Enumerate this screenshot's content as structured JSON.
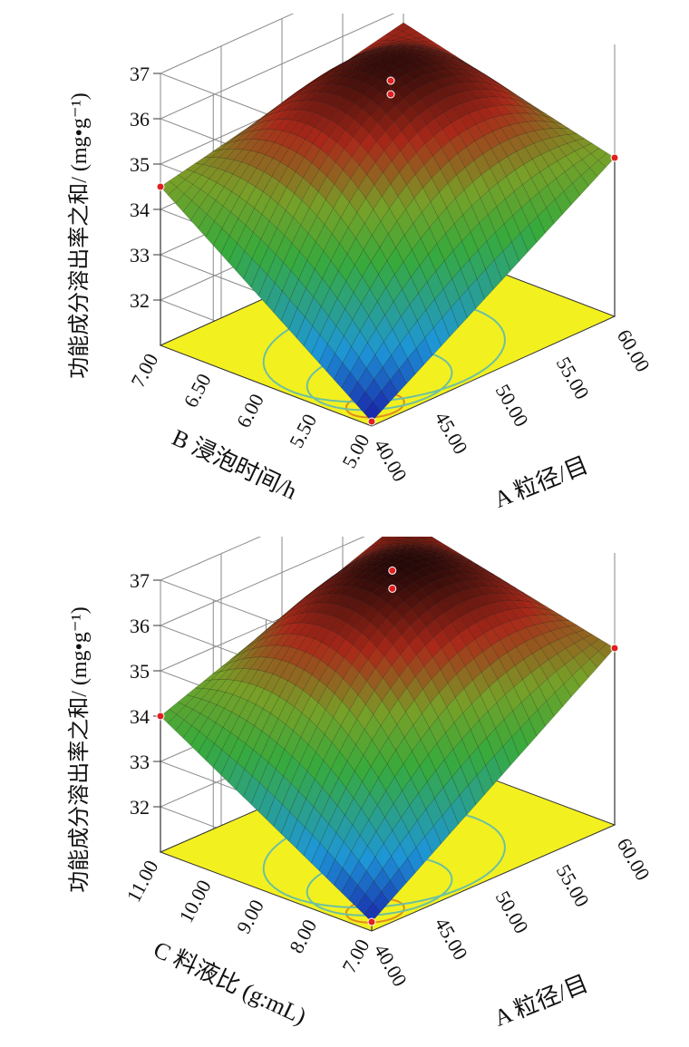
{
  "chart_data": [
    {
      "type": "surface3d",
      "z_label": "功能成分溶出率之和/ (mg•g⁻¹)",
      "z_ticks": [
        32,
        33,
        34,
        35,
        36,
        37
      ],
      "z_range": [
        31,
        37
      ],
      "x_label": "A 粒径/目",
      "x_ticks": [
        "40.00",
        "45.00",
        "50.00",
        "55.00",
        "60.00"
      ],
      "x_range": [
        40,
        60
      ],
      "y_label": "B 浸泡时间/h",
      "y_ticks": [
        "5.00",
        "5.50",
        "6.00",
        "6.50",
        "7.00"
      ],
      "y_range": [
        5,
        7
      ],
      "surface_corners": {
        "x_min_y_min": 31.1,
        "x_max_y_min": 34.5,
        "x_min_y_max": 34.5,
        "x_max_y_max": 35.7
      },
      "surface_peak": {
        "x": 52,
        "y": 6.2,
        "z": 36.4
      },
      "design_points_z": [
        35.8,
        35.9,
        34.5,
        34.5,
        31.1
      ]
    },
    {
      "type": "surface3d",
      "z_label": "功能成分溶出率之和/ (mg•g⁻¹)",
      "z_ticks": [
        32,
        33,
        34,
        35,
        36,
        37
      ],
      "z_range": [
        31,
        37
      ],
      "x_label": "A 粒径/目",
      "x_ticks": [
        "40.00",
        "45.00",
        "50.00",
        "55.00",
        "60.00"
      ],
      "x_range": [
        40,
        60
      ],
      "y_label": "C 料液比 (g:mL)",
      "y_ticks": [
        "7.00",
        "8.00",
        "9.00",
        "10.00",
        "11.00"
      ],
      "y_range": [
        7,
        11
      ],
      "surface_corners": {
        "x_min_y_min": 31.2,
        "x_max_y_min": 34.9,
        "x_min_y_max": 34.0,
        "x_max_y_max": 36.0
      },
      "surface_peak": {
        "x": 53,
        "y": 9.6,
        "z": 36.5
      },
      "design_points_z": [
        35.9,
        36.1,
        34.9,
        34.0,
        31.2
      ]
    }
  ]
}
